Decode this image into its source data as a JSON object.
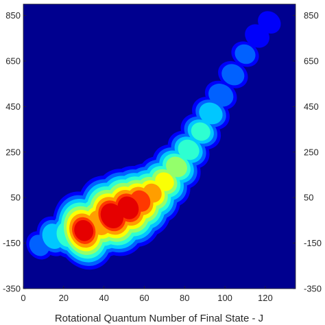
{
  "chart_data": {
    "type": "heatmap",
    "title": "",
    "xlabel": "Rotational Quantum Number of Final State - J",
    "ylabel": "",
    "xlim": [
      0,
      135
    ],
    "ylim": [
      -350,
      900
    ],
    "x_ticks": [
      0,
      20,
      40,
      60,
      80,
      100,
      120
    ],
    "x_tick_labels": [
      "0",
      "20",
      "40",
      "60",
      "80",
      "100",
      "120"
    ],
    "y_ticks": [
      -350,
      -150,
      50,
      250,
      450,
      650,
      850
    ],
    "y_tick_labels_left": [
      "-350",
      "-150",
      "50",
      "250",
      "450",
      "650",
      "850"
    ],
    "y_tick_labels_right": [
      "-350",
      "-150",
      "50",
      "250",
      "450",
      "650",
      "850"
    ],
    "colormap": "jet",
    "background_color": "#00008f",
    "ridge": [
      {
        "x": 8,
        "y": -160,
        "intensity": 0.25
      },
      {
        "x": 15,
        "y": -120,
        "intensity": 0.4
      },
      {
        "x": 22,
        "y": -110,
        "intensity": 0.5
      },
      {
        "x": 30,
        "y": -95,
        "intensity": 0.92
      },
      {
        "x": 38,
        "y": -60,
        "intensity": 0.8
      },
      {
        "x": 44,
        "y": -30,
        "intensity": 0.98
      },
      {
        "x": 52,
        "y": 5,
        "intensity": 0.95
      },
      {
        "x": 58,
        "y": 35,
        "intensity": 0.85
      },
      {
        "x": 64,
        "y": 70,
        "intensity": 0.72
      },
      {
        "x": 70,
        "y": 120,
        "intensity": 0.62
      },
      {
        "x": 76,
        "y": 185,
        "intensity": 0.55
      },
      {
        "x": 82,
        "y": 260,
        "intensity": 0.45
      },
      {
        "x": 88,
        "y": 340,
        "intensity": 0.42
      },
      {
        "x": 93,
        "y": 420,
        "intensity": 0.38
      },
      {
        "x": 98,
        "y": 500,
        "intensity": 0.3
      },
      {
        "x": 104,
        "y": 590,
        "intensity": 0.27
      },
      {
        "x": 110,
        "y": 680,
        "intensity": 0.24
      },
      {
        "x": 116,
        "y": 760,
        "intensity": 0.2
      },
      {
        "x": 122,
        "y": 820,
        "intensity": 0.18
      }
    ]
  }
}
